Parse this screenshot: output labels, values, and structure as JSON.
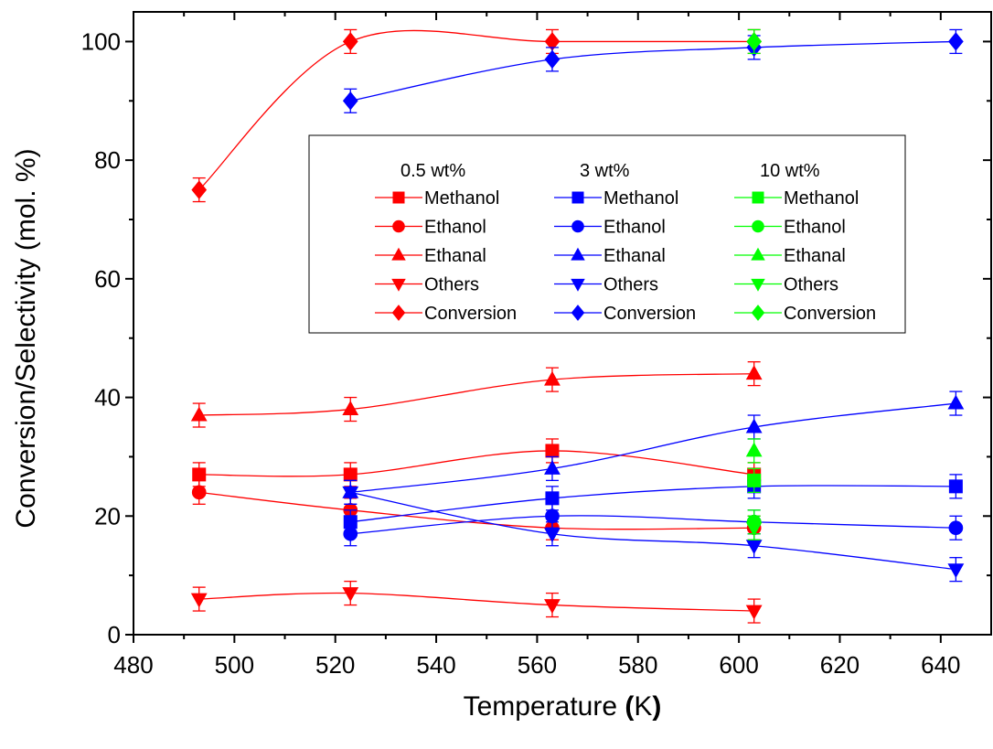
{
  "chart_data": {
    "type": "scatter",
    "xlabel": "Temperature (K)",
    "xlabel_main": "Temperature ",
    "xlabel_unit_open": "(",
    "xlabel_unit": "K",
    "xlabel_unit_close": ")",
    "ylabel": "Conversion/Selectivity (mol. %)",
    "xlim": [
      480,
      650
    ],
    "ylim": [
      0,
      105
    ],
    "xticks": [
      480,
      500,
      520,
      540,
      560,
      580,
      600,
      620,
      640
    ],
    "yticks": [
      0,
      20,
      40,
      60,
      80,
      100
    ],
    "legend_position": "center",
    "legend_groups": [
      {
        "title": "0.5 wt%",
        "color": "#ff0000"
      },
      {
        "title": "3 wt%",
        "color": "#0000ff"
      },
      {
        "title": "10 wt%",
        "color": "#00ff00"
      }
    ],
    "legend_entries": [
      "Methanol",
      "Ethanol",
      "Ethanal",
      "Others",
      "Conversion"
    ],
    "series": [
      {
        "group": "0.5 wt%",
        "label": "Methanol",
        "marker": "square",
        "color": "#ff0000",
        "x": [
          493,
          523,
          563,
          603
        ],
        "y": [
          27,
          27,
          31,
          27
        ],
        "err": [
          2,
          2,
          2,
          2
        ]
      },
      {
        "group": "0.5 wt%",
        "label": "Ethanol",
        "marker": "circle",
        "color": "#ff0000",
        "x": [
          493,
          523,
          563,
          603
        ],
        "y": [
          24,
          21,
          18,
          18
        ],
        "err": [
          2,
          2,
          2,
          2
        ]
      },
      {
        "group": "0.5 wt%",
        "label": "Ethanal",
        "marker": "triangle-up",
        "color": "#ff0000",
        "x": [
          493,
          523,
          563,
          603
        ],
        "y": [
          37,
          38,
          43,
          44
        ],
        "err": [
          2,
          2,
          2,
          2
        ]
      },
      {
        "group": "0.5 wt%",
        "label": "Others",
        "marker": "triangle-down",
        "color": "#ff0000",
        "x": [
          493,
          523,
          563,
          603
        ],
        "y": [
          6,
          7,
          5,
          4
        ],
        "err": [
          2,
          2,
          2,
          2
        ]
      },
      {
        "group": "0.5 wt%",
        "label": "Conversion",
        "marker": "diamond",
        "color": "#ff0000",
        "x": [
          493,
          523,
          563,
          603
        ],
        "y": [
          75,
          100,
          100,
          100
        ],
        "err": [
          2,
          2,
          2,
          2
        ]
      },
      {
        "group": "3 wt%",
        "label": "Methanol",
        "marker": "square",
        "color": "#0000ff",
        "x": [
          523,
          563,
          603,
          643
        ],
        "y": [
          19,
          23,
          25,
          25
        ],
        "err": [
          2,
          2,
          2,
          2
        ]
      },
      {
        "group": "3 wt%",
        "label": "Ethanol",
        "marker": "circle",
        "color": "#0000ff",
        "x": [
          523,
          563,
          603,
          643
        ],
        "y": [
          17,
          20,
          19,
          18
        ],
        "err": [
          2,
          2,
          2,
          2
        ]
      },
      {
        "group": "3 wt%",
        "label": "Ethanal",
        "marker": "triangle-up",
        "color": "#0000ff",
        "x": [
          523,
          563,
          603,
          643
        ],
        "y": [
          24,
          28,
          35,
          39
        ],
        "err": [
          2,
          2,
          2,
          2
        ]
      },
      {
        "group": "3 wt%",
        "label": "Others",
        "marker": "triangle-down",
        "color": "#0000ff",
        "x": [
          523,
          563,
          603,
          643
        ],
        "y": [
          24,
          17,
          15,
          11
        ],
        "err": [
          2,
          2,
          2,
          2
        ]
      },
      {
        "group": "3 wt%",
        "label": "Conversion",
        "marker": "diamond",
        "color": "#0000ff",
        "x": [
          523,
          563,
          603,
          643
        ],
        "y": [
          90,
          97,
          99,
          100
        ],
        "err": [
          2,
          2,
          2,
          2
        ]
      },
      {
        "group": "10 wt%",
        "label": "Methanol",
        "marker": "square",
        "color": "#00ff00",
        "x": [
          603
        ],
        "y": [
          26
        ],
        "err": [
          2
        ]
      },
      {
        "group": "10 wt%",
        "label": "Ethanol",
        "marker": "circle",
        "color": "#00ff00",
        "x": [
          603
        ],
        "y": [
          19
        ],
        "err": [
          2
        ]
      },
      {
        "group": "10 wt%",
        "label": "Ethanal",
        "marker": "triangle-up",
        "color": "#00ff00",
        "x": [
          603
        ],
        "y": [
          31
        ],
        "err": [
          2
        ]
      },
      {
        "group": "10 wt%",
        "label": "Others",
        "marker": "triangle-down",
        "color": "#00ff00",
        "x": [
          603
        ],
        "y": [
          18
        ],
        "err": [
          2
        ]
      },
      {
        "group": "10 wt%",
        "label": "Conversion",
        "marker": "diamond",
        "color": "#00ff00",
        "x": [
          603
        ],
        "y": [
          100
        ],
        "err": [
          2
        ]
      }
    ]
  }
}
